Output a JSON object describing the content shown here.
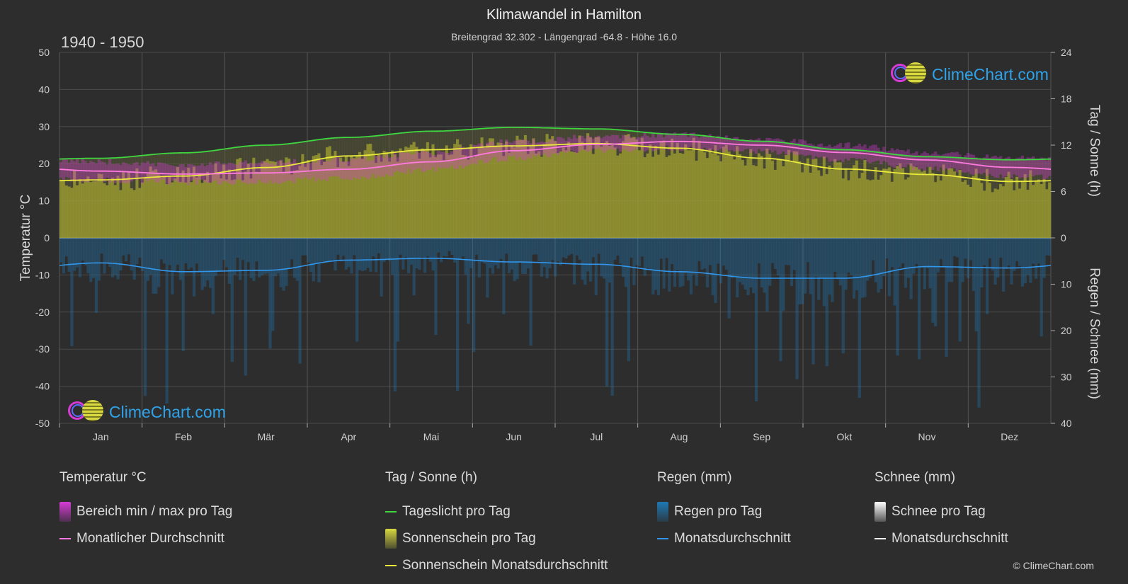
{
  "header": {
    "title": "Klimawandel in Hamilton",
    "subtitle": "Breitengrad 32.302 - Längengrad -64.8 - Höhe 16.0",
    "period": "1940 - 1950"
  },
  "logo_text": "ClimeChart.com",
  "copyright": "© ClimeChart.com",
  "colors": {
    "background": "#2d2d2d",
    "daylight": "#3fd63f",
    "sunshine_fill": "#a8a830",
    "sunshine_avg": "#eaea3c",
    "temp_range": "#d63bd6",
    "temp_avg": "#ff7adf",
    "rain": "#1f78b4",
    "rain_avg": "#3296ea",
    "snow": "#ffffff"
  },
  "chart_data": {
    "type": "line",
    "months": [
      "Jan",
      "Feb",
      "Mär",
      "Apr",
      "Mai",
      "Jun",
      "Jul",
      "Aug",
      "Sep",
      "Okt",
      "Nov",
      "Dez"
    ],
    "left_axis": {
      "label": "Temperatur °C",
      "ylim": [
        -50,
        50
      ],
      "ticks": [
        "50",
        "40",
        "30",
        "20",
        "10",
        "0",
        "-10",
        "-20",
        "-30",
        "-40",
        "-50"
      ]
    },
    "right_axis_top": {
      "label": "Tag / Sonne (h)",
      "ylim": [
        0,
        24
      ],
      "ticks": [
        "24",
        "18",
        "12",
        "6",
        "0"
      ]
    },
    "right_axis_bottom": {
      "label": "Regen / Schnee (mm)",
      "ylim": [
        0,
        40
      ],
      "ticks": [
        "0",
        "10",
        "20",
        "30",
        "40"
      ]
    },
    "series": [
      {
        "name": "Tageslicht pro Tag",
        "unit": "h",
        "values": [
          10.3,
          11.0,
          12.0,
          13.0,
          13.8,
          14.3,
          14.1,
          13.4,
          12.5,
          11.4,
          10.5,
          10.1
        ]
      },
      {
        "name": "Sonnenschein Monatsdurchschnitt",
        "unit": "h",
        "values": [
          7.5,
          8.0,
          9.1,
          10.6,
          11.4,
          11.9,
          12.2,
          11.6,
          10.3,
          8.9,
          8.2,
          7.3
        ]
      },
      {
        "name": "Monatlicher Durchschnitt",
        "unit": "°C",
        "values": [
          18.0,
          17.2,
          17.5,
          18.5,
          20.5,
          23.5,
          25.2,
          26.0,
          25.0,
          23.0,
          21.0,
          19.0
        ]
      },
      {
        "name": "Bereich min / max pro Tag",
        "unit": "°C",
        "min": [
          15.5,
          15.0,
          15.2,
          16.2,
          18.4,
          21.4,
          23.5,
          24.2,
          23.2,
          21.0,
          18.8,
          16.8
        ],
        "max": [
          20.5,
          19.8,
          20.3,
          21.2,
          23.0,
          26.0,
          27.3,
          27.8,
          26.8,
          25.0,
          23.0,
          21.5
        ]
      },
      {
        "name": "Regen Monatsdurchschnitt",
        "unit": "mm",
        "values": [
          5.4,
          7.3,
          7.0,
          4.8,
          4.4,
          5.2,
          5.7,
          7.3,
          8.7,
          8.7,
          6.2,
          6.5
        ]
      }
    ],
    "grid": true
  },
  "legend": {
    "groups": [
      {
        "heading": "Temperatur °C",
        "items": [
          {
            "label": "Bereich min / max pro Tag",
            "kind": "box",
            "color": "#d63bd6"
          },
          {
            "label": "Monatlicher Durchschnitt",
            "kind": "line",
            "color": "#ff7adf"
          }
        ]
      },
      {
        "heading": "Tag / Sonne (h)",
        "items": [
          {
            "label": "Tageslicht pro Tag",
            "kind": "line",
            "color": "#3fd63f"
          },
          {
            "label": "Sonnenschein pro Tag",
            "kind": "box",
            "color": "#d8d840"
          },
          {
            "label": "Sonnenschein Monatsdurchschnitt",
            "kind": "line",
            "color": "#eaea3c"
          }
        ]
      },
      {
        "heading": "Regen (mm)",
        "items": [
          {
            "label": "Regen pro Tag",
            "kind": "box",
            "color": "#1f78b4"
          },
          {
            "label": "Monatsdurchschnitt",
            "kind": "line",
            "color": "#3296ea"
          }
        ]
      },
      {
        "heading": "Schnee (mm)",
        "items": [
          {
            "label": "Schnee pro Tag",
            "kind": "box",
            "color": "#ffffff"
          },
          {
            "label": "Monatsdurchschnitt",
            "kind": "line",
            "color": "#ffffff"
          }
        ]
      }
    ]
  }
}
